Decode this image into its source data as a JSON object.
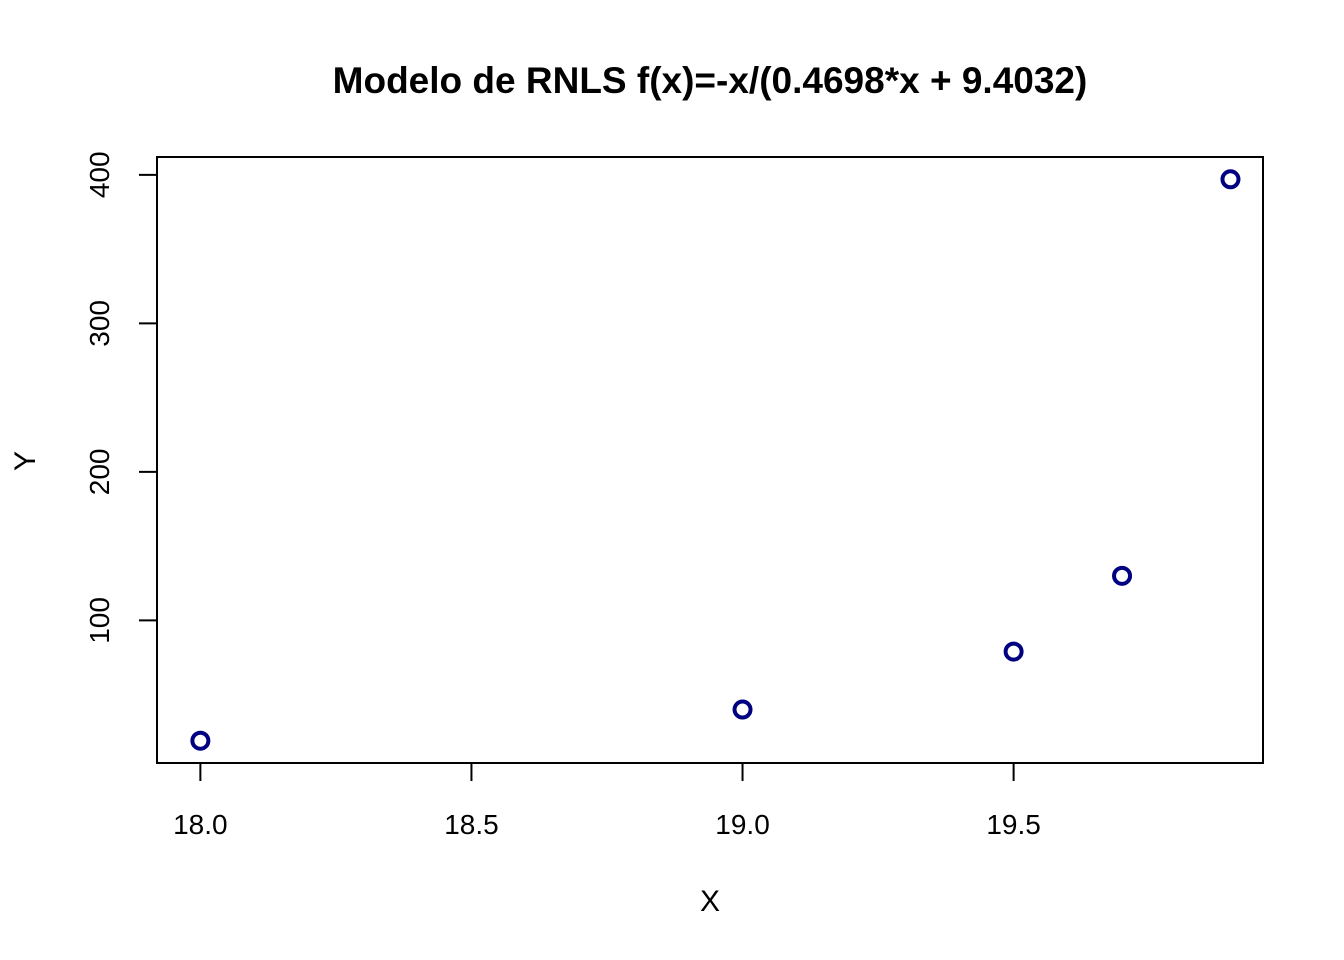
{
  "chart_data": {
    "type": "scatter",
    "title": "Modelo de RNLS f(x)=-x/(0.4698*x + 9.4032)",
    "xlabel": "X",
    "ylabel": "Y",
    "xlim": [
      17.92,
      19.96
    ],
    "ylim": [
      4,
      412
    ],
    "x_ticks": [
      18.0,
      18.5,
      19.0,
      19.5
    ],
    "x_tick_labels": [
      "18.0",
      "18.5",
      "19.0",
      "19.5"
    ],
    "y_ticks": [
      100,
      200,
      300,
      400
    ],
    "y_tick_labels": [
      "100",
      "200",
      "300",
      "400"
    ],
    "grid": false,
    "series": [
      {
        "type": "scatter",
        "marker": "open-circle",
        "color": "#000080",
        "points": [
          {
            "x": 18.0,
            "y": 19
          },
          {
            "x": 19.0,
            "y": 40
          },
          {
            "x": 19.5,
            "y": 79
          },
          {
            "x": 19.7,
            "y": 130
          },
          {
            "x": 19.9,
            "y": 397
          }
        ]
      },
      {
        "type": "line",
        "color": "#000000",
        "model": {
          "a": 0.4698,
          "b": 9.4032
        }
      }
    ]
  }
}
